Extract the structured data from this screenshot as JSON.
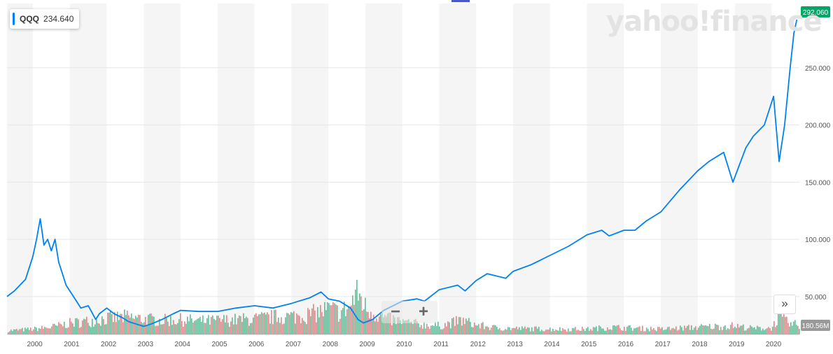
{
  "ticker": {
    "symbol": "QQQ",
    "value": "234.640"
  },
  "logo_text": "yahoo!finance",
  "price_badge": "292.060",
  "volume_badge": "180.56M",
  "zoom": {
    "minus": "−",
    "plus": "+"
  },
  "expand_icon_text": "»",
  "colors": {
    "line": "#0081f2",
    "badge": "#00a868",
    "vol_up": "#2dbd86",
    "vol_down": "#f0696b"
  },
  "chart_data": {
    "type": "line",
    "xlim": [
      1999.3,
      2020.75
    ],
    "ylim": [
      20,
      300
    ],
    "y_ticks": [
      50,
      100,
      150,
      200,
      250
    ],
    "y_tick_labels": [
      "50.000",
      "100.000",
      "150.000",
      "200.000",
      "250.000"
    ],
    "x_tick_labels": [
      "2000",
      "2001",
      "2002",
      "2003",
      "2004",
      "2005",
      "2006",
      "2007",
      "2008",
      "2009",
      "2010",
      "2011",
      "2012",
      "2013",
      "2014",
      "2015",
      "2016",
      "2017",
      "2018",
      "2019",
      "2020"
    ],
    "grid": true,
    "series": [
      {
        "x": [
          1999.3,
          1999.5,
          1999.8,
          2000.0,
          2000.1,
          2000.2,
          2000.3,
          2000.4,
          2000.5,
          2000.6,
          2000.7,
          2000.8,
          2000.9,
          2001.0,
          2001.2,
          2001.3,
          2001.5,
          2001.7,
          2001.8,
          2002.0,
          2002.2,
          2002.4,
          2002.6,
          2002.8,
          2003.0,
          2003.2,
          2003.5,
          2003.8,
          2004.0,
          2004.5,
          2005.0,
          2005.5,
          2006.0,
          2006.5,
          2007.0,
          2007.5,
          2007.8,
          2008.0,
          2008.3,
          2008.6,
          2008.8,
          2008.95,
          2009.2,
          2009.5,
          2010.0,
          2010.4,
          2010.6,
          2011.0,
          2011.5,
          2011.7,
          2012.0,
          2012.3,
          2012.8,
          2013.0,
          2013.5,
          2014.0,
          2014.5,
          2015.0,
          2015.4,
          2015.6,
          2016.0,
          2016.3,
          2016.6,
          2017.0,
          2017.5,
          2018.0,
          2018.3,
          2018.7,
          2018.95,
          2019.3,
          2019.5,
          2019.8,
          2020.05,
          2020.2,
          2020.35,
          2020.5,
          2020.6,
          2020.68
        ],
        "y": [
          50,
          55,
          65,
          85,
          100,
          118,
          95,
          100,
          90,
          100,
          80,
          70,
          60,
          55,
          45,
          40,
          42,
          30,
          35,
          40,
          35,
          32,
          28,
          26,
          24,
          26,
          30,
          35,
          38,
          37,
          37,
          40,
          42,
          40,
          44,
          49,
          54,
          48,
          46,
          40,
          30,
          27,
          30,
          38,
          46,
          48,
          46,
          56,
          60,
          55,
          64,
          70,
          66,
          72,
          78,
          86,
          94,
          104,
          108,
          103,
          108,
          108,
          116,
          124,
          143,
          160,
          168,
          176,
          150,
          180,
          190,
          200,
          225,
          168,
          200,
          250,
          280,
          292
        ]
      }
    ],
    "volume": {
      "ylim": [
        0,
        700
      ],
      "x": [
        1999.4,
        2000.0,
        2000.5,
        2001.0,
        2001.5,
        2002.0,
        2002.5,
        2003.0,
        2003.5,
        2004.0,
        2004.5,
        2005.0,
        2005.5,
        2006.0,
        2006.5,
        2007.0,
        2007.5,
        2008.0,
        2008.3,
        2008.6,
        2008.75,
        2008.85,
        2009.0,
        2009.3,
        2009.6,
        2010.0,
        2010.5,
        2011.0,
        2011.6,
        2012.0,
        2012.5,
        2013.0,
        2014.0,
        2015.0,
        2015.6,
        2016.0,
        2017.0,
        2018.0,
        2018.95,
        2019.5,
        2020.0,
        2020.15,
        2020.5
      ],
      "values": [
        60,
        80,
        110,
        170,
        200,
        240,
        260,
        230,
        210,
        220,
        200,
        210,
        220,
        230,
        260,
        270,
        300,
        380,
        330,
        430,
        660,
        560,
        390,
        300,
        230,
        190,
        150,
        130,
        210,
        140,
        100,
        90,
        80,
        80,
        110,
        100,
        80,
        110,
        130,
        90,
        100,
        260,
        150
      ]
    }
  }
}
